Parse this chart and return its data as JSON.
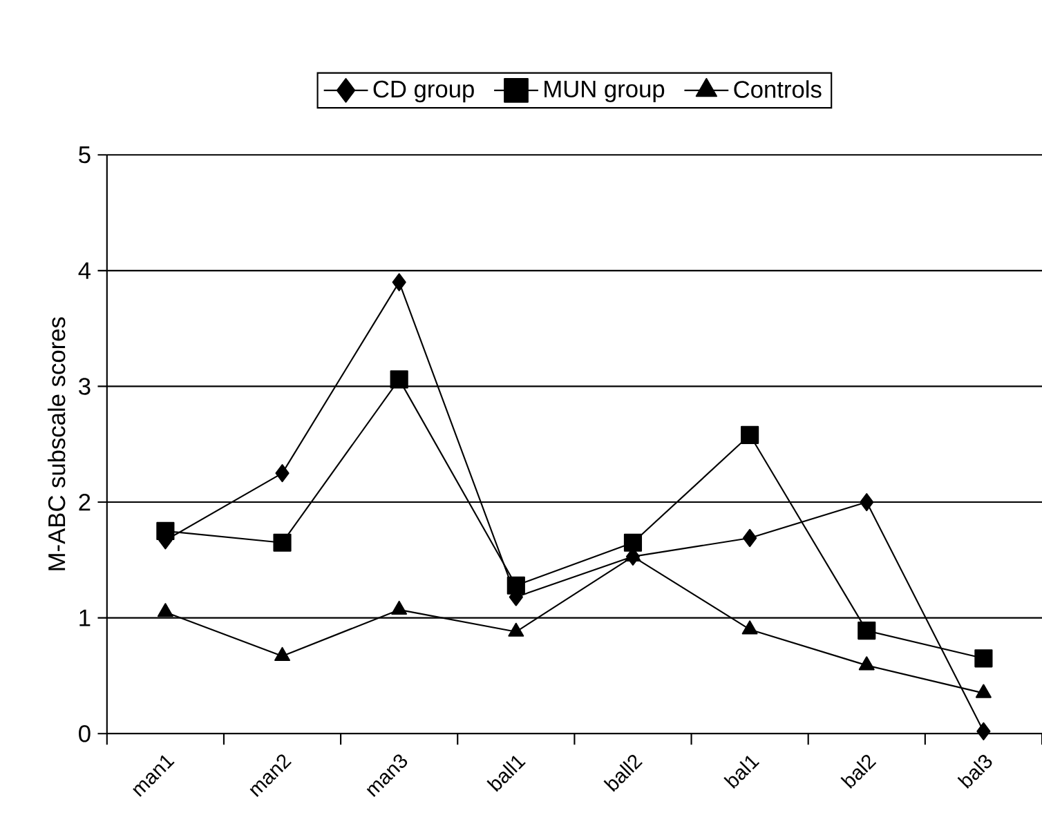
{
  "chart_data": {
    "type": "line",
    "ylabel": "M-ABC subscale scores",
    "categories": [
      "man1",
      "man2",
      "man3",
      "ball1",
      "ball2",
      "bal1",
      "bal2",
      "bal3"
    ],
    "series": [
      {
        "name": "CD group",
        "color": "#000000",
        "marker": "diamond",
        "values": [
          1.67,
          2.25,
          3.9,
          1.18,
          1.53,
          1.69,
          2.0,
          0.02
        ]
      },
      {
        "name": "MUN group",
        "color": "#000000",
        "marker": "square",
        "values": [
          1.75,
          1.65,
          3.06,
          1.28,
          1.65,
          2.58,
          0.89,
          0.65
        ]
      },
      {
        "name": "Controls",
        "color": "#000000",
        "marker": "triangle",
        "values": [
          1.05,
          0.67,
          1.07,
          0.88,
          1.53,
          0.9,
          0.59,
          0.35
        ]
      }
    ],
    "ylim": [
      0,
      5
    ],
    "yticks": [
      0,
      1,
      2,
      3,
      4,
      5
    ],
    "grid": "y",
    "legend": "top",
    "line_style": "solid"
  }
}
